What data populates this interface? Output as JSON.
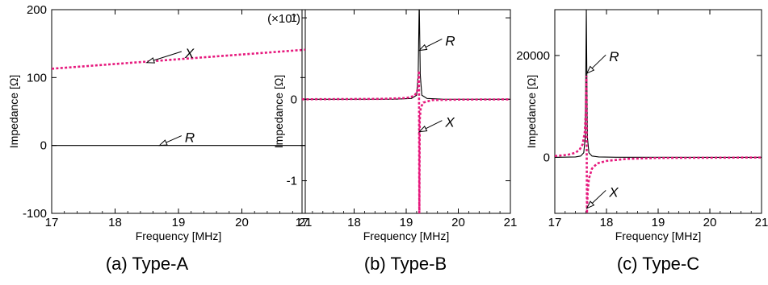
{
  "chart_data": [
    {
      "type": "line",
      "caption": "(a) Type-A",
      "xlabel": "Frequency [MHz]",
      "ylabel": "Impedance [Ω]",
      "xlim": [
        17,
        21
      ],
      "ylim": [
        -100,
        200
      ],
      "xticks": [
        "17",
        "18",
        "19",
        "20",
        "21"
      ],
      "yticks": [
        "-100",
        "0",
        "100",
        "200"
      ],
      "y_multiplier": "",
      "grid": false,
      "annotations": [
        {
          "label": "X",
          "target": [
            18.5,
            122
          ],
          "text_at": [
            19.1,
            136
          ]
        },
        {
          "label": "R",
          "target": [
            18.7,
            0
          ],
          "text_at": [
            19.1,
            12
          ]
        }
      ],
      "series": [
        {
          "key": "R",
          "style": "solid",
          "color": "#000000",
          "x": [
            17,
            21
          ],
          "y": [
            0,
            0
          ]
        },
        {
          "key": "X",
          "style": "dotted",
          "color": "#e6197d",
          "x": [
            17,
            18,
            19,
            20,
            21
          ],
          "y": [
            113,
            120,
            127,
            134,
            141
          ]
        }
      ]
    },
    {
      "type": "line",
      "caption": "(b) Type-B",
      "xlabel": "Frequency [MHz]",
      "ylabel": "Impedance [Ω]",
      "xlim": [
        17,
        21
      ],
      "ylim": [
        -1.4,
        1.1
      ],
      "xticks": [
        "17",
        "18",
        "19",
        "20",
        "21"
      ],
      "yticks": [
        "-1",
        "0",
        "1"
      ],
      "y_multiplier": "(×10⁷)",
      "grid": false,
      "annotations": [
        {
          "label": "R",
          "target": [
            19.25,
            0.6
          ],
          "text_at": [
            19.75,
            0.72
          ]
        },
        {
          "label": "X",
          "target": [
            19.25,
            -0.4
          ],
          "text_at": [
            19.75,
            -0.28
          ]
        }
      ],
      "series": [
        {
          "key": "R",
          "style": "solid",
          "color": "#000000",
          "x": [
            17,
            18.8,
            19.1,
            19.2,
            19.23,
            19.25,
            19.27,
            19.3,
            19.4,
            19.7,
            21
          ],
          "y": [
            0,
            0.001,
            0.01,
            0.05,
            0.3,
            1.2,
            0.3,
            0.05,
            0.01,
            0.001,
            0
          ]
        },
        {
          "key": "X",
          "style": "dotted",
          "color": "#e6197d",
          "x": [
            17,
            18.5,
            19.0,
            19.15,
            19.2,
            19.23,
            19.245,
            19.252,
            19.26,
            19.28,
            19.33,
            19.5,
            20,
            21
          ],
          "y": [
            0.0,
            0.005,
            0.015,
            0.04,
            0.08,
            0.15,
            0.35,
            -1.5,
            -0.25,
            -0.1,
            -0.04,
            -0.01,
            -0.004,
            -0.001
          ]
        }
      ]
    },
    {
      "type": "line",
      "caption": "(c) Type-C",
      "xlabel": "Frequency [MHz]",
      "ylabel": "Impedance [Ω]",
      "xlim": [
        17,
        21
      ],
      "ylim": [
        -11000,
        29000
      ],
      "xticks": [
        "17",
        "18",
        "19",
        "20",
        "21"
      ],
      "yticks": [
        "0",
        "20000"
      ],
      "y_multiplier": "",
      "grid": false,
      "annotations": [
        {
          "label": "R",
          "target": [
            17.62,
            16500
          ],
          "text_at": [
            18.05,
            19800
          ]
        },
        {
          "label": "X",
          "target": [
            17.62,
            -10000
          ],
          "text_at": [
            18.05,
            -6800
          ]
        }
      ],
      "series": [
        {
          "key": "R",
          "style": "solid",
          "color": "#000000",
          "x": [
            17,
            17.4,
            17.5,
            17.56,
            17.59,
            17.61,
            17.63,
            17.66,
            17.72,
            17.85,
            18.2,
            21
          ],
          "y": [
            0,
            80,
            250,
            900,
            4000,
            29000,
            4000,
            900,
            250,
            80,
            20,
            0
          ]
        },
        {
          "key": "X",
          "style": "dotted",
          "color": "#e6197d",
          "x": [
            17,
            17.25,
            17.4,
            17.48,
            17.54,
            17.58,
            17.6,
            17.612,
            17.622,
            17.635,
            17.66,
            17.72,
            17.82,
            18.0,
            18.4,
            19,
            21
          ],
          "y": [
            250,
            500,
            900,
            1500,
            2600,
            5000,
            9000,
            16000,
            -11000,
            -7000,
            -4200,
            -2200,
            -1200,
            -700,
            -300,
            -120,
            -30
          ]
        }
      ]
    }
  ]
}
